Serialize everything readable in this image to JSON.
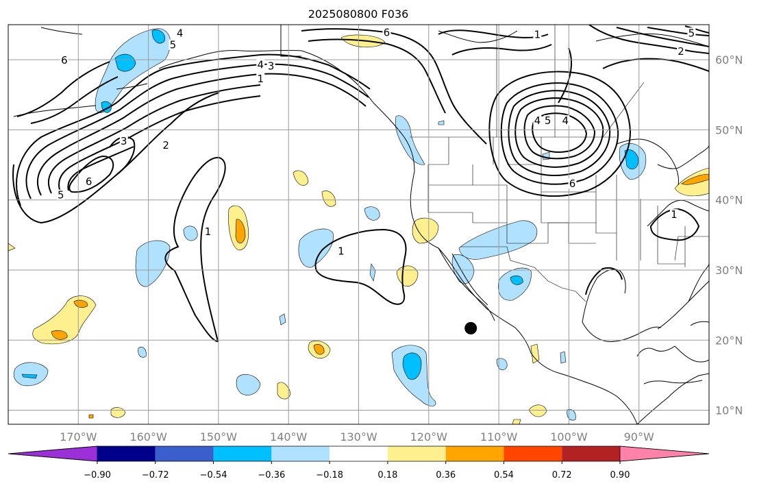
{
  "title": "2025080800 F036",
  "colors": {
    "background": "#ffffff",
    "coast": "#000000",
    "grid": "#9a9a9a",
    "contour": "#000000",
    "marker": "#000000"
  },
  "map": {
    "lon_range": [
      -180,
      -80
    ],
    "lat_range": [
      8,
      65
    ],
    "lon_ticks": [
      {
        "lon": -170,
        "label": "170°W"
      },
      {
        "lon": -160,
        "label": "160°W"
      },
      {
        "lon": -150,
        "label": "150°W"
      },
      {
        "lon": -140,
        "label": "140°W"
      },
      {
        "lon": -130,
        "label": "130°W"
      },
      {
        "lon": -120,
        "label": "120°W"
      },
      {
        "lon": -110,
        "label": "110°W"
      },
      {
        "lon": -100,
        "label": "100°W"
      },
      {
        "lon": -90,
        "label": "90°W"
      }
    ],
    "lat_ticks": [
      {
        "lat": 10,
        "label": "10°N"
      },
      {
        "lat": 20,
        "label": "20°N"
      },
      {
        "lat": 30,
        "label": "30°N"
      },
      {
        "lat": 40,
        "label": "40°N"
      },
      {
        "lat": 50,
        "label": "50°N"
      },
      {
        "lat": 60,
        "label": "60°N"
      }
    ],
    "marker": {
      "lon": -114,
      "lat": 21.7
    },
    "contour_labels": [
      {
        "text": "6",
        "lon": -172,
        "lat": 59.8
      },
      {
        "text": "4",
        "lon": -144,
        "lat": 59.2
      },
      {
        "text": "3",
        "lon": -142.5,
        "lat": 59.0
      },
      {
        "text": "1",
        "lon": -144,
        "lat": 57.2
      },
      {
        "text": "4",
        "lon": -155.5,
        "lat": 63.7
      },
      {
        "text": "5",
        "lon": -156.5,
        "lat": 62.0
      },
      {
        "text": "3",
        "lon": -163.5,
        "lat": 48.3
      },
      {
        "text": "2",
        "lon": -157.5,
        "lat": 47.7
      },
      {
        "text": "6",
        "lon": -168.5,
        "lat": 42.5
      },
      {
        "text": "5",
        "lon": -172.5,
        "lat": 40.6
      },
      {
        "text": "1",
        "lon": -151.5,
        "lat": 35.4
      },
      {
        "text": "1",
        "lon": -132.5,
        "lat": 32.6
      },
      {
        "text": "6",
        "lon": -126,
        "lat": 63.8
      },
      {
        "text": "1",
        "lon": -104.5,
        "lat": 63.5
      },
      {
        "text": "4",
        "lon": -104.5,
        "lat": 51.2
      },
      {
        "text": "5",
        "lon": -103,
        "lat": 51.2
      },
      {
        "text": "4",
        "lon": -100.5,
        "lat": 51.2
      },
      {
        "text": "6",
        "lon": -99.5,
        "lat": 42.2
      },
      {
        "text": "2",
        "lon": -84,
        "lat": 61.1
      },
      {
        "text": "5",
        "lon": -82.5,
        "lat": 63.7
      },
      {
        "text": "1",
        "lon": -85,
        "lat": 37.8
      }
    ]
  },
  "colorbar": {
    "colors": [
      "#9b30d9",
      "#00008b",
      "#3a5fcd",
      "#00bfff",
      "#b0e2ff",
      "#ffffff",
      "#fff08f",
      "#ffa500",
      "#ff4500",
      "#b22222",
      "#ff82ab"
    ],
    "tick_labels": [
      "−0.90",
      "−0.72",
      "−0.54",
      "−0.36",
      "−0.18",
      "0.18",
      "0.36",
      "0.54",
      "0.72",
      "0.90"
    ]
  }
}
